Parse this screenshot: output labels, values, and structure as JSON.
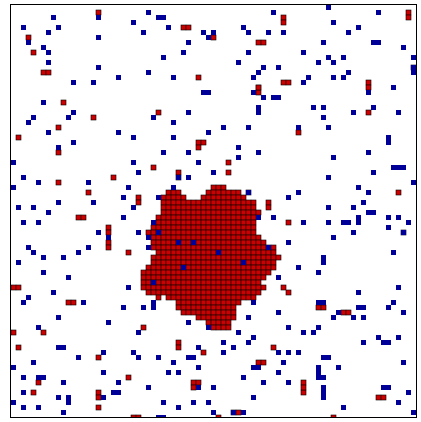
{
  "simulation": {
    "colors": {
      "background": "#ffffff",
      "cluster_fill": "#cc0000",
      "cluster_edge": "#000000",
      "particle_fill": "#000099",
      "frame": "#000000"
    }
  }
}
